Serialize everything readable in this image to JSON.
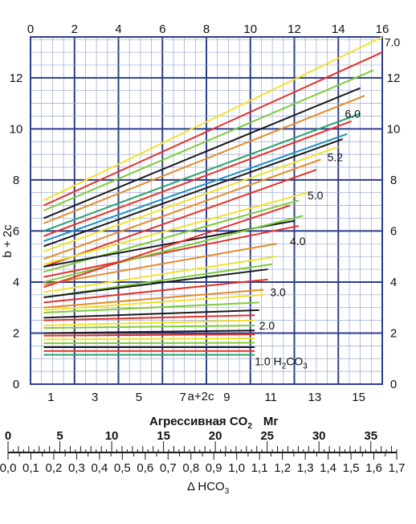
{
  "chart_data": {
    "type": "line",
    "title": "",
    "left_axis": {
      "label": "b + 2c",
      "ticks": [
        "0",
        "2",
        "4",
        "6",
        "8",
        "10",
        "12"
      ],
      "ylim": [
        0,
        13.6
      ]
    },
    "right_axis": {
      "ticks": [
        "0",
        "2",
        "4",
        "6",
        "8",
        "10",
        "12"
      ]
    },
    "top_axis": {
      "ticks": [
        "0",
        "2",
        "4",
        "6",
        "8",
        "10",
        "12",
        "14",
        "16"
      ],
      "xlim": [
        0,
        16
      ]
    },
    "bottom_axis": {
      "label": "a+2c",
      "ticks": [
        "1",
        "3",
        "5",
        "7",
        "9",
        "11",
        "13",
        "15"
      ]
    },
    "bottom_caption": {
      "main": "Агрессивная CO",
      "sub": "2",
      "unit": "Мг"
    },
    "scale_co2": {
      "ticks": [
        "0",
        "5",
        "10",
        "15",
        "20",
        "25",
        "30",
        "35"
      ],
      "max": 37.5
    },
    "scale_hco3": {
      "ticks": [
        "0,0",
        "0,1",
        "0,2",
        "0,3",
        "0,4",
        "0,5",
        "0,6",
        "0,7",
        "0,8",
        "0,9",
        "1,0",
        "1,1",
        "1,2",
        "1,3",
        "1,4",
        "1,5",
        "1,6",
        "1,7"
      ],
      "label": "Δ HCO",
      "label_sub": "3"
    },
    "curve_labels": [
      {
        "text": "7.0",
        "x": 16.1,
        "y": 13.4
      },
      {
        "text": "6.0",
        "x": 14.3,
        "y": 10.6
      },
      {
        "text": "5.2",
        "x": 13.5,
        "y": 8.9
      },
      {
        "text": "5.0",
        "x": 12.6,
        "y": 7.4
      },
      {
        "text": "4.0",
        "x": 11.8,
        "y": 5.6
      },
      {
        "text": "3.0",
        "x": 10.9,
        "y": 3.6
      },
      {
        "text": "2.0",
        "x": 10.4,
        "y": 2.3
      },
      {
        "text": "1.0 H",
        "x": 10.2,
        "y": 0.9,
        "sub": "2",
        "tail": "CO",
        "sub2": "3"
      }
    ],
    "series": [
      {
        "name": "7.0",
        "color": "#f2e22a",
        "x": [
          0.6,
          16
        ],
        "y": [
          7.2,
          13.6
        ]
      },
      {
        "color": "#e53128",
        "x": [
          0.6,
          16
        ],
        "y": [
          7.0,
          13.0
        ]
      },
      {
        "color": "#7ecb3a",
        "x": [
          0.6,
          15.6
        ],
        "y": [
          6.8,
          12.3
        ]
      },
      {
        "color": "#1a1a1a",
        "x": [
          0.6,
          15
        ],
        "y": [
          6.5,
          11.6
        ]
      },
      {
        "color": "#e58a27",
        "x": [
          0.6,
          15.2
        ],
        "y": [
          6.3,
          11.3
        ]
      },
      {
        "color": "#2aa06a",
        "x": [
          0.6,
          15
        ],
        "y": [
          6.0,
          10.6
        ]
      },
      {
        "color": "#e53128",
        "x": [
          0.6,
          14.6
        ],
        "y": [
          5.8,
          10.3
        ]
      },
      {
        "color": "#1f8fbf",
        "x": [
          0.6,
          14.4
        ],
        "y": [
          5.6,
          9.8
        ]
      },
      {
        "color": "#1a1a1a",
        "x": [
          0.6,
          14.2
        ],
        "y": [
          5.4,
          9.6
        ]
      },
      {
        "color": "#f2e22a",
        "x": [
          0.6,
          14
        ],
        "y": [
          5.2,
          9.3
        ]
      },
      {
        "color": "#e58a27",
        "x": [
          0.6,
          13.2
        ],
        "y": [
          4.9,
          8.8
        ]
      },
      {
        "color": "#e53128",
        "x": [
          0.6,
          13
        ],
        "y": [
          4.6,
          8.4
        ]
      },
      {
        "color": "#f2e22a",
        "x": [
          0.6,
          12.6
        ],
        "y": [
          4.7,
          7.5
        ]
      },
      {
        "color": "#7ecb3a",
        "x": [
          0.6,
          12.2
        ],
        "y": [
          4.4,
          7.2
        ]
      },
      {
        "color": "#1a1a1a",
        "x": [
          0.6,
          12
        ],
        "y": [
          4.6,
          6.4
        ]
      },
      {
        "color": "#e53128",
        "x": [
          0.6,
          12.2
        ],
        "y": [
          4.2,
          6.2
        ]
      },
      {
        "color": "#7ecb3a",
        "x": [
          0.6,
          12.4
        ],
        "y": [
          4.0,
          6.6
        ]
      },
      {
        "color": "#e58a27",
        "x": [
          0.6,
          11.2
        ],
        "y": [
          3.9,
          5.5
        ]
      },
      {
        "color": "#e53128",
        "x": [
          0.6,
          11.8
        ],
        "y": [
          3.8,
          7.0
        ]
      },
      {
        "color": "#f2e22a",
        "x": [
          0.6,
          11.2
        ],
        "y": [
          3.6,
          5.0
        ]
      },
      {
        "color": "#7ecb3a",
        "x": [
          0.6,
          11
        ],
        "y": [
          3.4,
          4.7
        ]
      },
      {
        "color": "#1a1a1a",
        "x": [
          0.6,
          10.8
        ],
        "y": [
          3.4,
          4.5
        ]
      },
      {
        "color": "#e53128",
        "x": [
          0.6,
          10.8
        ],
        "y": [
          3.2,
          4.1
        ]
      },
      {
        "color": "#e58a27",
        "x": [
          0.6,
          10.6
        ],
        "y": [
          3.0,
          3.7
        ]
      },
      {
        "color": "#f2e22a",
        "x": [
          0.6,
          10.6
        ],
        "y": [
          2.9,
          3.5
        ]
      },
      {
        "color": "#7ecb3a",
        "x": [
          0.6,
          10.4
        ],
        "y": [
          2.8,
          3.2
        ]
      },
      {
        "color": "#1a1a1a",
        "x": [
          0.6,
          10.4
        ],
        "y": [
          2.6,
          2.9
        ]
      },
      {
        "color": "#e53128",
        "x": [
          0.6,
          10.2
        ],
        "y": [
          2.5,
          2.7
        ]
      },
      {
        "color": "#f2e22a",
        "x": [
          0.6,
          10.2
        ],
        "y": [
          2.3,
          2.5
        ]
      },
      {
        "color": "#7ecb3a",
        "x": [
          0.6,
          10.2
        ],
        "y": [
          2.2,
          2.3
        ]
      },
      {
        "color": "#1a1a1a",
        "x": [
          0.6,
          10.2
        ],
        "y": [
          2.0,
          2.1
        ]
      },
      {
        "color": "#e53128",
        "x": [
          0.6,
          10.2
        ],
        "y": [
          1.9,
          1.95
        ]
      },
      {
        "color": "#f2e22a",
        "x": [
          0.6,
          10.2
        ],
        "y": [
          1.75,
          1.8
        ]
      },
      {
        "color": "#7ecb3a",
        "x": [
          0.6,
          10.2
        ],
        "y": [
          1.6,
          1.62
        ]
      },
      {
        "color": "#1a1a1a",
        "x": [
          0.6,
          10.2
        ],
        "y": [
          1.45,
          1.45
        ]
      },
      {
        "color": "#e53128",
        "x": [
          0.6,
          10.2
        ],
        "y": [
          1.3,
          1.3
        ]
      },
      {
        "color": "#2aa06a",
        "x": [
          0.6,
          10.2
        ],
        "y": [
          1.15,
          1.15
        ]
      }
    ]
  }
}
